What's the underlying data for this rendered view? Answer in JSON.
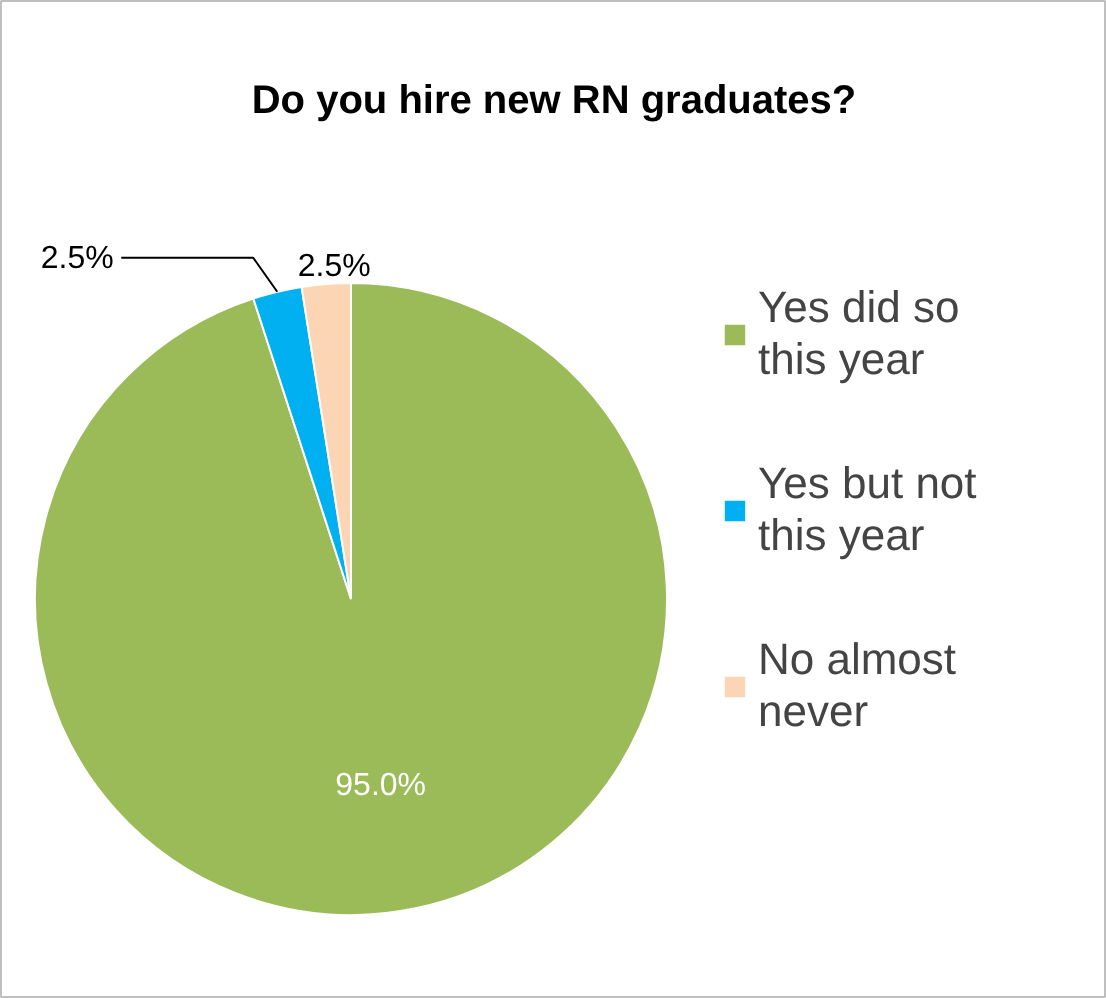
{
  "chart_data": {
    "type": "pie",
    "title": "Do you hire new RN graduates?",
    "categories": [
      "Yes did so this year",
      "Yes but not this year",
      "No almost never"
    ],
    "values": [
      95.0,
      2.5,
      2.5
    ],
    "colors": [
      "#9bbb59",
      "#00b0f0",
      "#fcd5b5"
    ],
    "value_labels": [
      "95.0%",
      "2.5%",
      "2.5%"
    ],
    "legend": "right"
  }
}
